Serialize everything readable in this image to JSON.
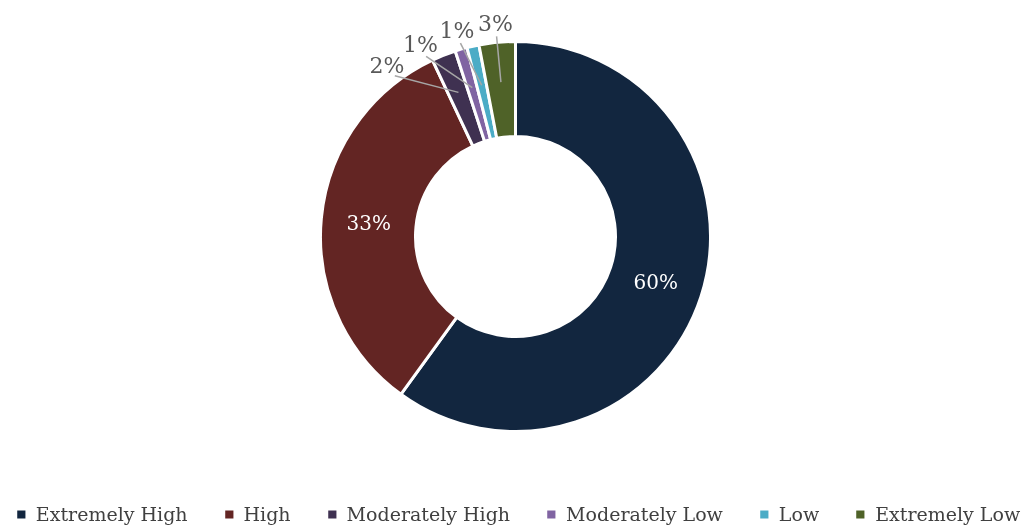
{
  "chart_data": {
    "type": "donut",
    "categories": [
      "Extremely High",
      "High",
      "Moderately High",
      "Moderately Low",
      "Low",
      "Extremely Low"
    ],
    "values": [
      60,
      33,
      2,
      1,
      1,
      3
    ],
    "colors": [
      "#12263f",
      "#632523",
      "#3f3151",
      "#8064a2",
      "#4bacc6",
      "#4f6228"
    ],
    "value_labels": [
      "60%",
      "33%",
      "2%",
      "1%",
      "1%",
      "3%"
    ],
    "legend": "bottom"
  }
}
